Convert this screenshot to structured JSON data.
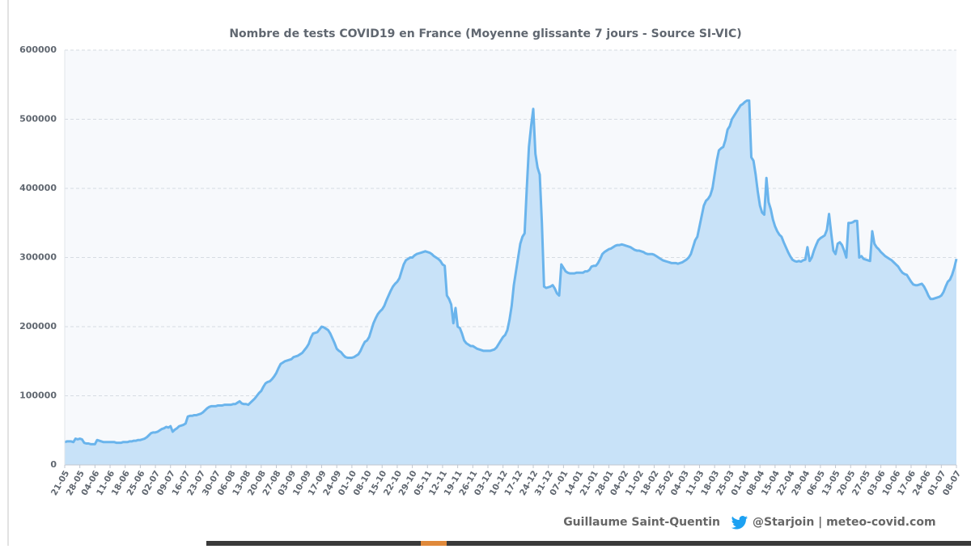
{
  "chart_data": {
    "type": "area",
    "title": "Nombre de tests COVID19 en France (Moyenne glissante 7 jours - Source SI-VIC)",
    "credit_author": "Guillaume Saint-Quentin",
    "credit_handle": "@Starjoin | meteo-covid.com",
    "color": "#6ab4ec",
    "fill_color": "#c8e2f8",
    "grid": true,
    "ylim": [
      0,
      600000
    ],
    "yticks": [
      0,
      100000,
      200000,
      300000,
      400000,
      500000,
      600000
    ],
    "categories": [
      "21-05",
      null,
      null,
      null,
      null,
      null,
      null,
      "28-05",
      null,
      null,
      null,
      null,
      null,
      null,
      "04-06",
      null,
      null,
      null,
      null,
      null,
      null,
      "11-06",
      null,
      null,
      null,
      null,
      null,
      null,
      "18-06",
      null,
      null,
      null,
      null,
      null,
      null,
      "25-06",
      null,
      null,
      null,
      null,
      null,
      null,
      "02-07",
      null,
      null,
      null,
      null,
      null,
      null,
      "09-07",
      null,
      null,
      null,
      null,
      null,
      null,
      "16-07",
      null,
      null,
      null,
      null,
      null,
      null,
      "23-07",
      null,
      null,
      null,
      null,
      null,
      null,
      "30-07",
      null,
      null,
      null,
      null,
      null,
      null,
      "06-08",
      null,
      null,
      null,
      null,
      null,
      null,
      "13-08",
      null,
      null,
      null,
      null,
      null,
      null,
      "20-08",
      null,
      null,
      null,
      null,
      null,
      null,
      "27-08",
      null,
      null,
      null,
      null,
      null,
      null,
      "03-09",
      null,
      null,
      null,
      null,
      null,
      null,
      "10-09",
      null,
      null,
      null,
      null,
      null,
      null,
      "17-09",
      null,
      null,
      null,
      null,
      null,
      null,
      "24-09",
      null,
      null,
      null,
      null,
      null,
      null,
      "01-10",
      null,
      null,
      null,
      null,
      null,
      null,
      "08-10",
      null,
      null,
      null,
      null,
      null,
      null,
      "15-10",
      null,
      null,
      null,
      null,
      null,
      null,
      "22-10",
      null,
      null,
      null,
      null,
      null,
      null,
      "29-10",
      null,
      null,
      null,
      null,
      null,
      null,
      "05-11",
      null,
      null,
      null,
      null,
      null,
      null,
      "12-11",
      null,
      null,
      null,
      null,
      null,
      null,
      "19-11",
      null,
      null,
      null,
      null,
      null,
      null,
      "26-11",
      null,
      null,
      null,
      null,
      null,
      null,
      "03-12",
      null,
      null,
      null,
      null,
      null,
      null,
      "10-12",
      null,
      null,
      null,
      null,
      null,
      null,
      "17-12",
      null,
      null,
      null,
      null,
      null,
      null,
      "24-12",
      null,
      null,
      null,
      null,
      null,
      null,
      "31-12",
      null,
      null,
      null,
      null,
      null,
      null,
      "07-01",
      null,
      null,
      null,
      null,
      null,
      null,
      "14-01",
      null,
      null,
      null,
      null,
      null,
      null,
      "21-01",
      null,
      null,
      null,
      null,
      null,
      null,
      "28-01",
      null,
      null,
      null,
      null,
      null,
      null,
      "04-02",
      null,
      null,
      null,
      null,
      null,
      null,
      "11-02",
      null,
      null,
      null,
      null,
      null,
      null,
      "18-02",
      null,
      null,
      null,
      null,
      null,
      null,
      "25-02",
      null,
      null,
      null,
      null,
      null,
      null,
      "04-03",
      null,
      null,
      null,
      null,
      null,
      null,
      "11-03",
      null,
      null,
      null,
      null,
      null,
      null,
      "18-03",
      null,
      null,
      null,
      null,
      null,
      null,
      "25-03",
      null,
      null,
      null,
      null,
      null,
      null,
      "01-04",
      null,
      null,
      null,
      null,
      null,
      null,
      "08-04",
      null,
      null,
      null,
      null,
      null,
      null,
      "15-04",
      null,
      null,
      null,
      null,
      null,
      null,
      "22-04",
      null,
      null,
      null,
      null,
      null,
      null,
      "29-04",
      null,
      null,
      null,
      null,
      null,
      null,
      "06-05",
      null,
      null,
      null,
      null,
      null,
      null,
      "13-05",
      null,
      null,
      null,
      null,
      null,
      null,
      "20-05",
      null,
      null,
      null,
      null,
      null,
      null,
      "27-05",
      null,
      null,
      null,
      null,
      null,
      null,
      "03-06",
      null,
      null,
      null,
      null,
      null,
      null,
      "10-06",
      null,
      null,
      null,
      null,
      null,
      null,
      "17-06",
      null,
      null,
      null,
      null,
      null,
      null,
      "24-06",
      null,
      null,
      null,
      null,
      null,
      null,
      "01-07",
      null,
      null,
      null,
      null,
      null,
      null,
      "08-07"
    ],
    "values": [
      33000,
      34000,
      34000,
      34000,
      33000,
      38000,
      37000,
      38000,
      37000,
      32000,
      31000,
      31000,
      30000,
      30000,
      30000,
      36000,
      35000,
      34000,
      33000,
      33000,
      33000,
      33000,
      33000,
      33000,
      32000,
      32000,
      32000,
      33000,
      33000,
      33000,
      34000,
      34000,
      35000,
      35000,
      36000,
      36000,
      37000,
      38000,
      40000,
      43000,
      46000,
      47000,
      47000,
      48000,
      50000,
      52000,
      53000,
      55000,
      54000,
      56000,
      48000,
      51000,
      53000,
      56000,
      57000,
      58000,
      60000,
      70000,
      71000,
      71000,
      72000,
      72000,
      73000,
      74000,
      76000,
      79000,
      82000,
      84000,
      85000,
      85000,
      85000,
      86000,
      86000,
      86000,
      87000,
      87000,
      87000,
      87000,
      88000,
      88000,
      90000,
      92000,
      89000,
      88000,
      88000,
      87000,
      90000,
      93000,
      96000,
      100000,
      104000,
      107000,
      113000,
      118000,
      120000,
      121000,
      124000,
      128000,
      133000,
      140000,
      146000,
      148000,
      150000,
      151000,
      152000,
      153000,
      156000,
      157000,
      158000,
      160000,
      162000,
      166000,
      170000,
      175000,
      184000,
      190000,
      191000,
      192000,
      196000,
      200000,
      199000,
      197000,
      195000,
      190000,
      183000,
      176000,
      168000,
      165000,
      163000,
      159000,
      156000,
      155000,
      155000,
      155000,
      156000,
      158000,
      160000,
      165000,
      172000,
      178000,
      180000,
      185000,
      195000,
      205000,
      212000,
      218000,
      222000,
      225000,
      230000,
      238000,
      245000,
      252000,
      258000,
      262000,
      265000,
      270000,
      280000,
      290000,
      296000,
      298000,
      300000,
      300000,
      303000,
      305000,
      306000,
      307000,
      308000,
      309000,
      308000,
      307000,
      305000,
      302000,
      300000,
      298000,
      295000,
      290000,
      288000,
      245000,
      240000,
      232000,
      205000,
      227000,
      200000,
      198000,
      190000,
      180000,
      176000,
      174000,
      172000,
      172000,
      170000,
      168000,
      167000,
      166000,
      165000,
      165000,
      165000,
      165000,
      166000,
      167000,
      170000,
      175000,
      180000,
      185000,
      188000,
      195000,
      210000,
      230000,
      260000,
      280000,
      300000,
      320000,
      330000,
      335000,
      400000,
      460000,
      490000,
      515000,
      450000,
      430000,
      420000,
      350000,
      258000,
      256000,
      257000,
      258000,
      260000,
      255000,
      248000,
      245000,
      290000,
      285000,
      280000,
      278000,
      277000,
      277000,
      277000,
      278000,
      278000,
      278000,
      278000,
      280000,
      280000,
      282000,
      287000,
      288000,
      288000,
      292000,
      298000,
      305000,
      308000,
      310000,
      312000,
      313000,
      315000,
      317000,
      318000,
      318000,
      319000,
      318000,
      317000,
      316000,
      315000,
      313000,
      311000,
      310000,
      310000,
      309000,
      308000,
      306000,
      305000,
      305000,
      305000,
      304000,
      302000,
      300000,
      298000,
      296000,
      295000,
      294000,
      293000,
      292000,
      292000,
      292000,
      291000,
      292000,
      293000,
      295000,
      297000,
      300000,
      305000,
      315000,
      325000,
      330000,
      345000,
      360000,
      375000,
      382000,
      385000,
      390000,
      400000,
      420000,
      440000,
      455000,
      458000,
      460000,
      470000,
      485000,
      490000,
      500000,
      505000,
      510000,
      515000,
      520000,
      522000,
      525000,
      527000,
      527000,
      445000,
      440000,
      420000,
      395000,
      375000,
      365000,
      362000,
      415000,
      380000,
      370000,
      355000,
      345000,
      338000,
      333000,
      330000,
      322000,
      315000,
      308000,
      302000,
      297000,
      295000,
      294000,
      295000,
      294000,
      296000,
      297000,
      315000,
      295000,
      300000,
      310000,
      318000,
      325000,
      328000,
      330000,
      332000,
      340000,
      363000,
      335000,
      310000,
      305000,
      320000,
      322000,
      318000,
      310000,
      300000,
      350000,
      350000,
      351000,
      353000,
      353000,
      300000,
      302000,
      298000,
      297000,
      296000,
      295000,
      338000,
      320000,
      315000,
      312000,
      308000,
      305000,
      302000,
      300000,
      298000,
      296000,
      293000,
      290000,
      287000,
      282000,
      278000,
      276000,
      275000,
      270000,
      265000,
      261000,
      260000,
      260000,
      261000,
      262000,
      258000,
      252000,
      245000,
      240000,
      240000,
      241000,
      242000,
      243000,
      245000,
      250000,
      258000,
      265000,
      268000,
      275000,
      285000,
      298000
    ]
  }
}
